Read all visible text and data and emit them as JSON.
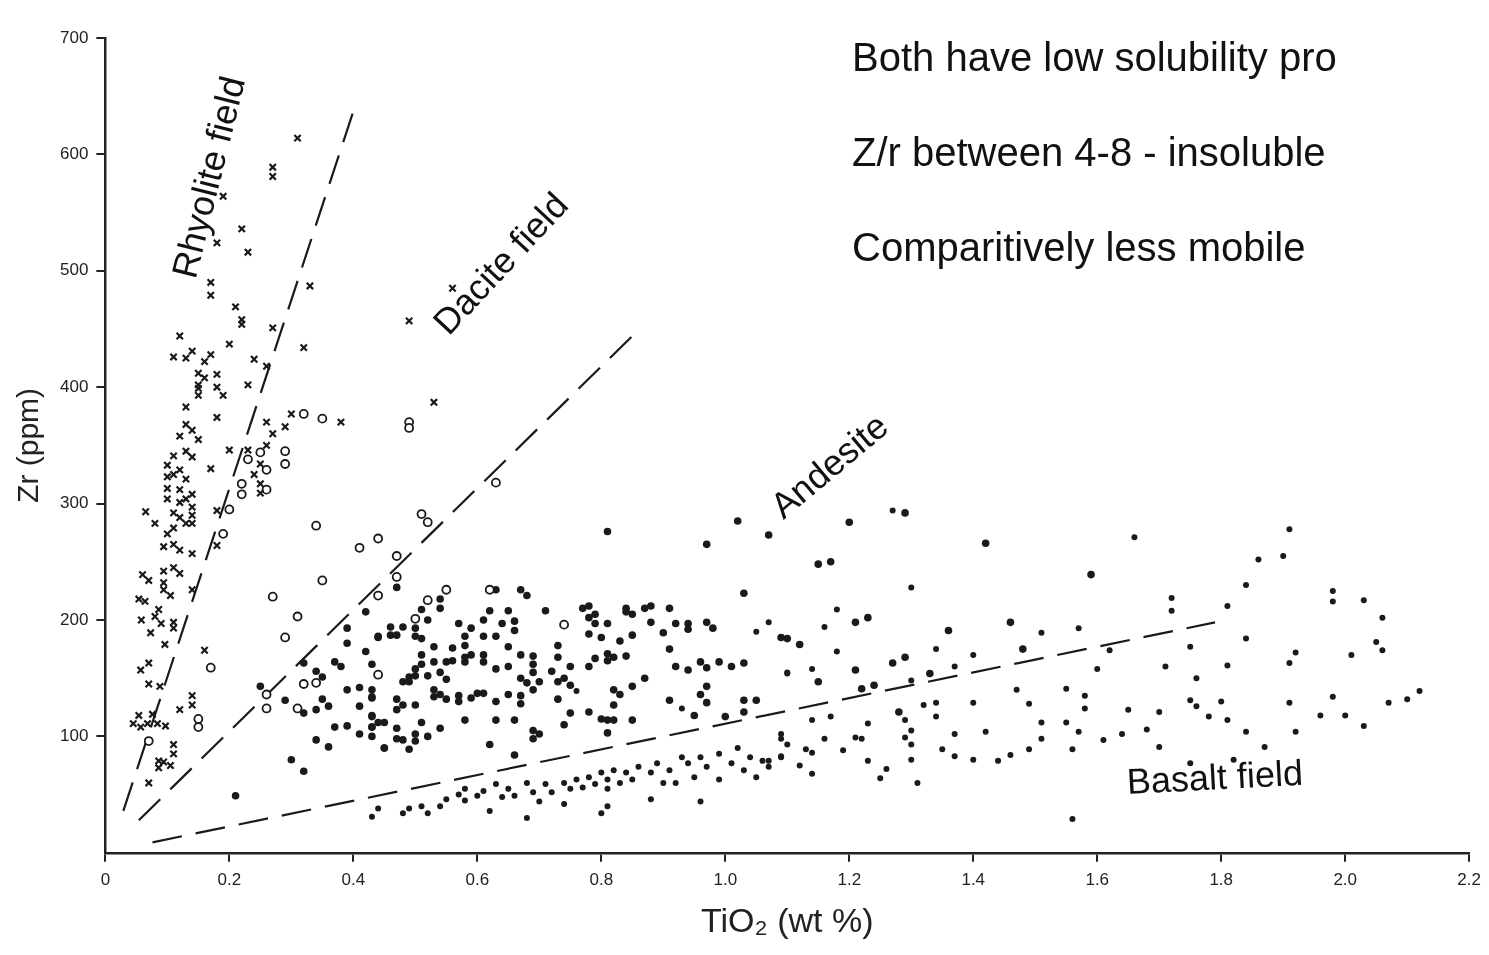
{
  "chart_data": {
    "type": "scatter",
    "xlabel": "TiO₂ (wt %)",
    "ylabel": "Zr (ppm)",
    "xlim": [
      0,
      2.2
    ],
    "ylim": [
      0,
      700
    ],
    "xticks": [
      0,
      0.2,
      0.4,
      0.6,
      0.8,
      {
        "value": 1,
        "label": "1.0"
      },
      1.2,
      1.4,
      1.6,
      1.8,
      {
        "value": 2,
        "label": "2.0"
      },
      2.2
    ],
    "yticks": [
      100,
      200,
      300,
      400,
      500,
      600,
      700
    ],
    "grid": false,
    "legend": false,
    "annotations": [
      "Rhyolite field",
      "Dacite field",
      "Andesite",
      "Basalt field",
      "Both have low solubility pro",
      "Z/r between 4-8 - insoluble",
      "Comparitively less mobile"
    ],
    "series": [
      {
        "color": "#1a1a1a",
        "marker": "cross",
        "x": [
          0.31,
          0.27,
          0.27,
          0.19,
          0.22,
          0.18,
          0.23,
          0.17,
          0.17,
          0.33,
          0.21,
          0.22,
          0.22,
          0.27,
          0.12,
          0.2,
          0.32,
          0.11,
          0.13,
          0.14,
          0.16,
          0.17,
          0.24,
          0.26,
          0.15,
          0.16,
          0.18,
          0.15,
          0.15,
          0.18,
          0.15,
          0.19,
          0.23,
          0.13,
          0.18,
          0.3,
          0.38,
          0.26,
          0.29,
          0.27,
          0.13,
          0.14,
          0.12,
          0.15,
          0.2,
          0.23,
          0.26,
          0.11,
          0.13,
          0.14,
          0.1,
          0.12,
          0.17,
          0.25,
          0.24,
          0.1,
          0.11,
          0.13,
          0.1,
          0.12,
          0.14,
          0.25,
          0.25,
          0.1,
          0.12,
          0.13,
          0.14,
          0.11,
          0.12,
          0.14,
          0.13,
          0.14,
          0.065,
          0.08,
          0.18,
          0.11,
          0.1,
          0.094,
          0.11,
          0.12,
          0.14,
          0.18,
          0.06,
          0.07,
          0.094,
          0.094,
          0.094,
          0.105,
          0.11,
          0.12,
          0.14,
          0.054,
          0.064,
          0.086,
          0.08,
          0.058,
          0.09,
          0.11,
          0.11,
          0.073,
          0.096,
          0.16,
          0.057,
          0.07,
          0.07,
          0.088,
          0.12,
          0.14,
          0.14,
          0.054,
          0.045,
          0.057,
          0.068,
          0.076,
          0.084,
          0.097,
          0.11,
          0.11,
          0.086,
          0.094,
          0.105,
          0.086,
          0.07,
          0.49,
          0.56,
          0.53
        ],
        "values": [
          614,
          589,
          581,
          564,
          536,
          524,
          516,
          490,
          479,
          487,
          469,
          458,
          454,
          451,
          444,
          437,
          434,
          426,
          425,
          431,
          422,
          428,
          424,
          418,
          412,
          408,
          411,
          402,
          399,
          400,
          393,
          393,
          402,
          383,
          374,
          377,
          370,
          370,
          366,
          360,
          368,
          363,
          358,
          355,
          346,
          346,
          350,
          341,
          345,
          340,
          333,
          329,
          330,
          334,
          325,
          323,
          325,
          321,
          313,
          312,
          308,
          317,
          309,
          304,
          301,
          304,
          297,
          292,
          288,
          290,
          283,
          283,
          293,
          283,
          294,
          279,
          274,
          263,
          265,
          260,
          257,
          264,
          239,
          234,
          242,
          232,
          226,
          221,
          245,
          240,
          226,
          218,
          216,
          209,
          203,
          200,
          197,
          198,
          193,
          189,
          179,
          174,
          157,
          163,
          145,
          143,
          123,
          127,
          135,
          118,
          111,
          108,
          111,
          119,
          111,
          109,
          93,
          85,
          79,
          78,
          75,
          73,
          60,
          457,
          485,
          387
        ]
      },
      {
        "color": "#1a1a1a",
        "marker": "circle",
        "x": [
          0.23,
          0.25,
          0.26,
          0.29,
          0.29,
          0.22,
          0.22,
          0.26,
          0.2,
          0.19,
          0.34,
          0.41,
          0.44,
          0.35,
          0.44,
          0.27,
          0.31,
          0.29,
          0.17,
          0.32,
          0.34,
          0.26,
          0.26,
          0.31,
          0.44,
          0.15,
          0.15,
          0.07,
          0.32,
          0.35,
          0.49,
          0.49,
          0.63,
          0.51,
          0.52,
          0.47,
          0.47,
          0.55,
          0.62,
          0.52,
          0.5,
          0.74
        ],
        "values": [
          338,
          344,
          329,
          345,
          334,
          317,
          308,
          312,
          295,
          274,
          281,
          262,
          270,
          234,
          221,
          220,
          203,
          185,
          159,
          145,
          146,
          136,
          124,
          124,
          153,
          115,
          108,
          96,
          377,
          373,
          370,
          365,
          318,
          291,
          284,
          255,
          237,
          226,
          226,
          217,
          201,
          196
        ]
      },
      {
        "color": "#1a1a1a",
        "marker": "circle",
        "x": [
          0.47,
          0.54,
          0.54,
          0.63,
          0.67,
          0.68,
          0.71,
          0.77,
          0.78,
          0.79,
          0.78,
          0.79,
          0.81,
          0.78,
          0.8,
          0.84,
          0.84,
          0.85,
          0.87,
          0.88,
          0.91,
          0.88,
          0.92,
          0.94,
          0.94,
          0.97,
          0.98,
          1.03,
          0.9,
          0.91,
          0.85,
          0.83,
          0.44,
          0.46,
          0.47,
          0.46,
          0.48,
          0.5,
          0.5,
          0.51,
          0.52,
          0.51,
          0.57,
          0.59,
          0.58,
          0.61,
          0.61,
          0.62,
          0.64,
          0.66,
          0.65,
          0.63,
          0.66,
          0.65,
          0.58,
          0.56,
          0.53,
          0.51,
          0.58,
          0.59,
          0.61,
          0.55,
          0.56,
          0.58,
          0.53,
          0.51,
          0.5,
          0.49,
          0.48,
          0.61,
          0.63,
          0.65,
          0.67,
          0.69,
          0.69,
          0.69,
          0.67,
          0.68,
          0.7,
          0.69,
          0.67,
          0.65,
          0.63,
          0.6,
          0.61,
          0.59,
          0.57,
          0.55,
          0.57,
          0.54,
          0.53,
          0.53,
          0.55,
          0.54,
          0.52,
          0.49,
          0.5,
          0.43,
          0.47,
          0.47,
          0.48,
          0.5,
          0.43,
          0.43,
          0.43,
          0.45,
          0.43,
          0.47,
          0.47,
          0.48,
          0.5,
          0.5,
          0.51,
          0.52,
          0.54,
          0.45,
          0.49,
          0.58,
          0.63,
          0.67,
          0.69,
          0.69,
          0.7,
          0.62,
          0.66,
          0.66,
          0.72,
          0.73,
          0.74,
          0.73,
          0.73,
          0.75,
          0.73,
          0.75,
          0.74,
          0.75,
          0.78,
          0.78,
          0.79,
          0.81,
          0.81,
          0.82,
          0.84,
          0.82,
          0.83,
          0.85,
          0.82,
          0.8,
          0.81,
          0.82,
          0.85,
          0.81,
          0.87,
          0.92,
          0.94,
          0.96,
          0.97,
          0.97,
          0.96,
          0.97,
          0.91,
          0.95,
          0.99,
          1.01,
          1.03,
          1.03,
          1.05,
          1.03,
          1,
          1.09,
          0.81,
          1.02,
          0.97,
          1.07,
          0.25,
          0.29,
          0.21,
          0.3,
          0.32,
          0.37,
          0.39,
          0.42,
          0.39,
          0.39,
          0.37,
          0.38,
          0.32,
          0.34,
          0.35,
          0.32,
          0.34,
          0.35,
          0.36,
          0.39,
          0.41,
          0.41,
          0.43,
          0.43,
          0.41,
          0.43,
          0.44,
          0.34,
          0.36,
          0.42,
          0.43,
          0.44,
          0.45,
          1.2,
          1.29,
          1.15,
          1.17,
          1.42,
          1.59,
          1.21,
          1.23,
          1.36,
          1.46,
          1.1,
          1.12,
          1.15,
          1.21,
          1.22,
          1.24,
          1.27,
          1.29,
          1.33,
          1.48,
          1.28
        ],
        "values": [
          228,
          218,
          210,
          226,
          226,
          221,
          208,
          210,
          212,
          205,
          202,
          197,
          197,
          188,
          185,
          207,
          210,
          205,
          210,
          212,
          210,
          198,
          197,
          197,
          192,
          198,
          193,
          223,
          189,
          175,
          187,
          182,
          186,
          187,
          187,
          194,
          194,
          186,
          193,
          184,
          200,
          209,
          197,
          193,
          186,
          186,
          200,
          208,
          197,
          199,
          208,
          186,
          191,
          177,
          178,
          176,
          177,
          170,
          168,
          170,
          170,
          164,
          165,
          164,
          164,
          162,
          158,
          151,
          147,
          164,
          158,
          160,
          170,
          169,
          162,
          155,
          150,
          146,
          147,
          140,
          135,
          136,
          130,
          137,
          137,
          133,
          135,
          132,
          130,
          136,
          134,
          140,
          149,
          155,
          152,
          147,
          152,
          140,
          132,
          123,
          127,
          127,
          133,
          118,
          108,
          112,
          100,
          107,
          98,
          97,
          96,
          102,
          112,
          100,
          107,
          90,
          89,
          114,
          114,
          128,
          105,
          98,
          102,
          93,
          84,
          114,
          156,
          147,
          150,
          168,
          178,
          144,
          132,
          160,
          110,
          120,
          121,
          160,
          167,
          171,
          165,
          168,
          169,
          140,
          136,
          143,
          127,
          115,
          114,
          114,
          114,
          103,
          150,
          160,
          157,
          164,
          159,
          143,
          136,
          129,
          131,
          118,
          164,
          160,
          163,
          131,
          131,
          121,
          117,
          185,
          276,
          285,
          265,
          273,
          143,
          131,
          49,
          80,
          70,
          108,
          109,
          207,
          193,
          180,
          164,
          160,
          163,
          156,
          151,
          120,
          123,
          132,
          126,
          140,
          126,
          142,
          134,
          117,
          102,
          108,
          112,
          97,
          91,
          173,
          162,
          185,
          90,
          284,
          292,
          248,
          250,
          266,
          239,
          198,
          202,
          191,
          198,
          184,
          179,
          147,
          157,
          141,
          144,
          163,
          168,
          154,
          175,
          121
        ]
      },
      {
        "color": "#1a1a1a",
        "marker": "circle",
        "x": [
          0.44,
          0.43,
          0.48,
          0.49,
          0.51,
          0.52,
          0.54,
          0.55,
          0.57,
          0.58,
          0.58,
          0.6,
          0.61,
          0.62,
          0.63,
          0.64,
          0.65,
          0.66,
          0.68,
          0.68,
          0.69,
          0.7,
          0.71,
          0.72,
          0.74,
          0.75,
          0.74,
          0.76,
          0.77,
          0.78,
          0.79,
          0.8,
          0.81,
          0.81,
          0.82,
          0.83,
          0.84,
          0.85,
          0.86,
          0.88,
          0.89,
          0.9,
          0.91,
          0.92,
          0.93,
          0.94,
          0.95,
          0.96,
          0.97,
          0.99,
          0.99,
          1.01,
          1.02,
          1.03,
          1.04,
          1.05,
          1.06,
          1.07,
          1.09,
          1.1,
          0.96,
          0.88,
          0.81,
          0.8,
          1.07,
          1.05,
          1.1,
          1.09,
          0.93,
          0.76,
          1.66,
          1.91,
          1.86,
          1.9,
          1.84,
          1.98,
          1.98,
          2.03,
          1.72,
          1.72,
          1.81,
          2.06,
          1.84,
          1.92,
          1.91,
          2.01,
          2.05,
          2.06,
          2.12,
          2.1,
          2.07,
          1.98,
          1.91,
          1.96,
          2,
          2.03,
          1.92,
          1.87,
          1.84,
          1.81,
          1.8,
          1.81,
          1.78,
          1.76,
          1.75,
          1.76,
          1.75,
          1.71,
          1.7,
          1.7,
          1.82,
          1.75,
          1.56,
          1.62,
          1.6,
          1.57,
          1.51,
          1.55,
          1.58,
          1.58,
          1.55,
          1.57,
          1.56,
          1.61,
          1.64,
          1.65,
          1.68,
          1.51,
          1.51,
          1.47,
          1.49,
          1.49,
          1.46,
          1.44,
          1.42,
          1.4,
          1.4,
          1.37,
          1.35,
          1.34,
          1.32,
          1.34,
          1.37,
          1.37,
          1.4,
          1.34,
          1.3,
          1.29,
          1.3,
          1.3,
          1.29,
          1.3,
          1.31,
          1.26,
          1.25,
          1.23,
          1.22,
          1.21,
          1.19,
          1.23,
          1.18,
          1.18,
          1.16,
          1.14,
          1.1,
          1.3,
          1.27,
          1.17,
          1.16,
          1.14,
          1.14,
          1.13,
          1.12,
          1.14,
          1.09,
          1.09,
          1.07
        ],
        "values": [
          38,
          31,
          34,
          38,
          40,
          34,
          40,
          46,
          50,
          55,
          45,
          49,
          53,
          36,
          59,
          48,
          55,
          49,
          60,
          30,
          52,
          44,
          59,
          52,
          60,
          55,
          42,
          63,
          56,
          65,
          59,
          69,
          63,
          55,
          71,
          60,
          69,
          63,
          74,
          69,
          77,
          60,
          71,
          60,
          82,
          77,
          65,
          82,
          74,
          85,
          63,
          77,
          90,
          71,
          82,
          65,
          79,
          74,
          82,
          93,
          44,
          46,
          40,
          34,
          198,
          190,
          155,
          102,
          124,
          139,
          271,
          278,
          252,
          255,
          230,
          225,
          216,
          217,
          219,
          208,
          212,
          202,
          184,
          172,
          163,
          170,
          181,
          174,
          139,
          132,
          129,
          134,
          129,
          118,
          118,
          109,
          104,
          91,
          104,
          161,
          130,
          114,
          117,
          126,
          131,
          150,
          177,
          160,
          121,
          91,
          80,
          77,
          29,
          174,
          158,
          193,
          189,
          141,
          135,
          124,
          112,
          104,
          89,
          97,
          102,
          123,
          106,
          112,
          98,
          140,
          128,
          89,
          84,
          79,
          104,
          129,
          80,
          83,
          89,
          129,
          127,
          117,
          102,
          160,
          170,
          175,
          148,
          114,
          105,
          93,
          99,
          80,
          60,
          72,
          64,
          79,
          98,
          99,
          88,
          111,
          173,
          209,
          194,
          158,
          154,
          228,
          294,
          117,
          98,
          114,
          86,
          89,
          75,
          68,
          98,
          83,
          79
        ]
      },
      {
        "type": "line",
        "color": "#1a1a1a",
        "line_style": "dashed",
        "marker": "none",
        "x": [
          0.029,
          0.4
        ],
        "values": [
          36,
          637
        ]
      },
      {
        "type": "line",
        "color": "#1a1a1a",
        "line_style": "dashed",
        "marker": "none",
        "x": [
          0.054,
          0.852
        ],
        "values": [
          28,
          445
        ]
      },
      {
        "type": "line",
        "color": "#1a1a1a",
        "line_style": "dashed",
        "marker": "none",
        "x": [
          0.076,
          1.79
        ],
        "values": [
          9,
          198
        ]
      }
    ]
  }
}
